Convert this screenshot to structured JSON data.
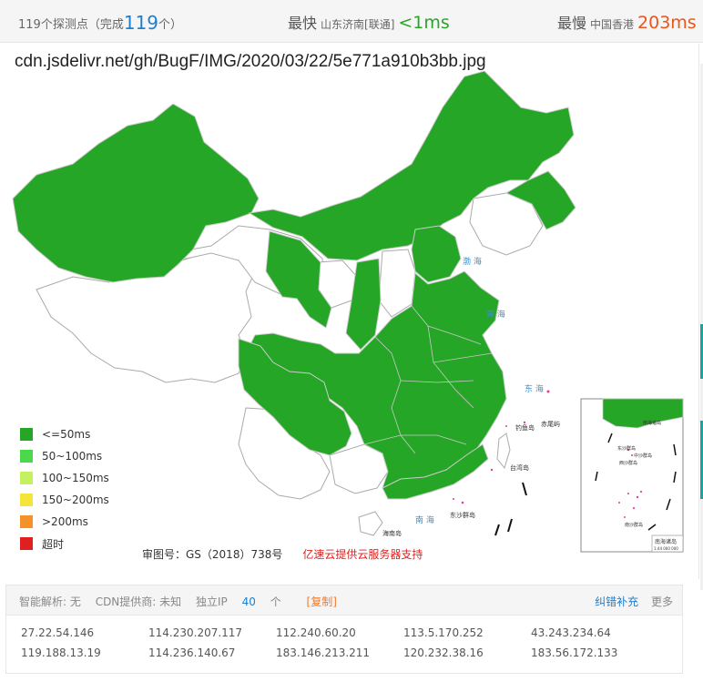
{
  "summary": {
    "probe_count_text": "119个探测点",
    "complete_prefix": "（完成",
    "complete_count": "119",
    "complete_suffix": "个）",
    "fastest_label": "最快",
    "fastest_location": "山东济南[联通]",
    "fastest_value": "<1ms",
    "slowest_label": "最慢",
    "slowest_location": "中国香港",
    "slowest_value": "203ms"
  },
  "map": {
    "url": "cdn.jsdelivr.net/gh/BugF/IMG/2020/03/22/5e771a910b3bb.jpg",
    "sea_labels": [
      "渤 海",
      "黄 海",
      "东 海",
      "南 海"
    ],
    "island_labels": [
      "钓鱼岛",
      "赤尾屿",
      "台湾岛",
      "东沙群岛",
      "海南岛"
    ],
    "inset_labels": [
      "南海诸岛",
      "东沙群岛",
      "西沙群岛",
      "中沙群岛",
      "南沙群岛"
    ],
    "inset_caption": "南海诸岛",
    "inset_scale": "1:44 000 000",
    "credit": "审图号：GS（2018）738号",
    "sponsor": "亿速云提供云服务器支持"
  },
  "legend": [
    {
      "label": "<=50ms",
      "color": "#26a626"
    },
    {
      "label": "50~100ms",
      "color": "#4bd84b"
    },
    {
      "label": "100~150ms",
      "color": "#c5f060"
    },
    {
      "label": "150~200ms",
      "color": "#f5e43a"
    },
    {
      "label": ">200ms",
      "color": "#f5902a"
    },
    {
      "label": "超时",
      "color": "#e02020"
    }
  ],
  "info": {
    "dns": "智能解析: 无",
    "cdn": "CDN提供商: 未知",
    "ip_prefix": "独立IP",
    "ip_count": "40",
    "ip_suffix": "个",
    "copy": "[复制]",
    "fix": "纠错补充",
    "more": "更多"
  },
  "ips": [
    [
      "27.22.54.146",
      "114.230.207.117",
      "112.240.60.20",
      "113.5.170.252",
      "43.243.234.64"
    ],
    [
      "119.188.13.19",
      "114.236.140.67",
      "183.146.213.211",
      "120.232.38.16",
      "183.56.172.133"
    ]
  ],
  "colors": {
    "green": "#26a626",
    "white_region": "#ffffff",
    "border": "#aaaaaa",
    "fast": "#26a626",
    "slow": "#e8561e",
    "link": "#1e7fd0"
  }
}
